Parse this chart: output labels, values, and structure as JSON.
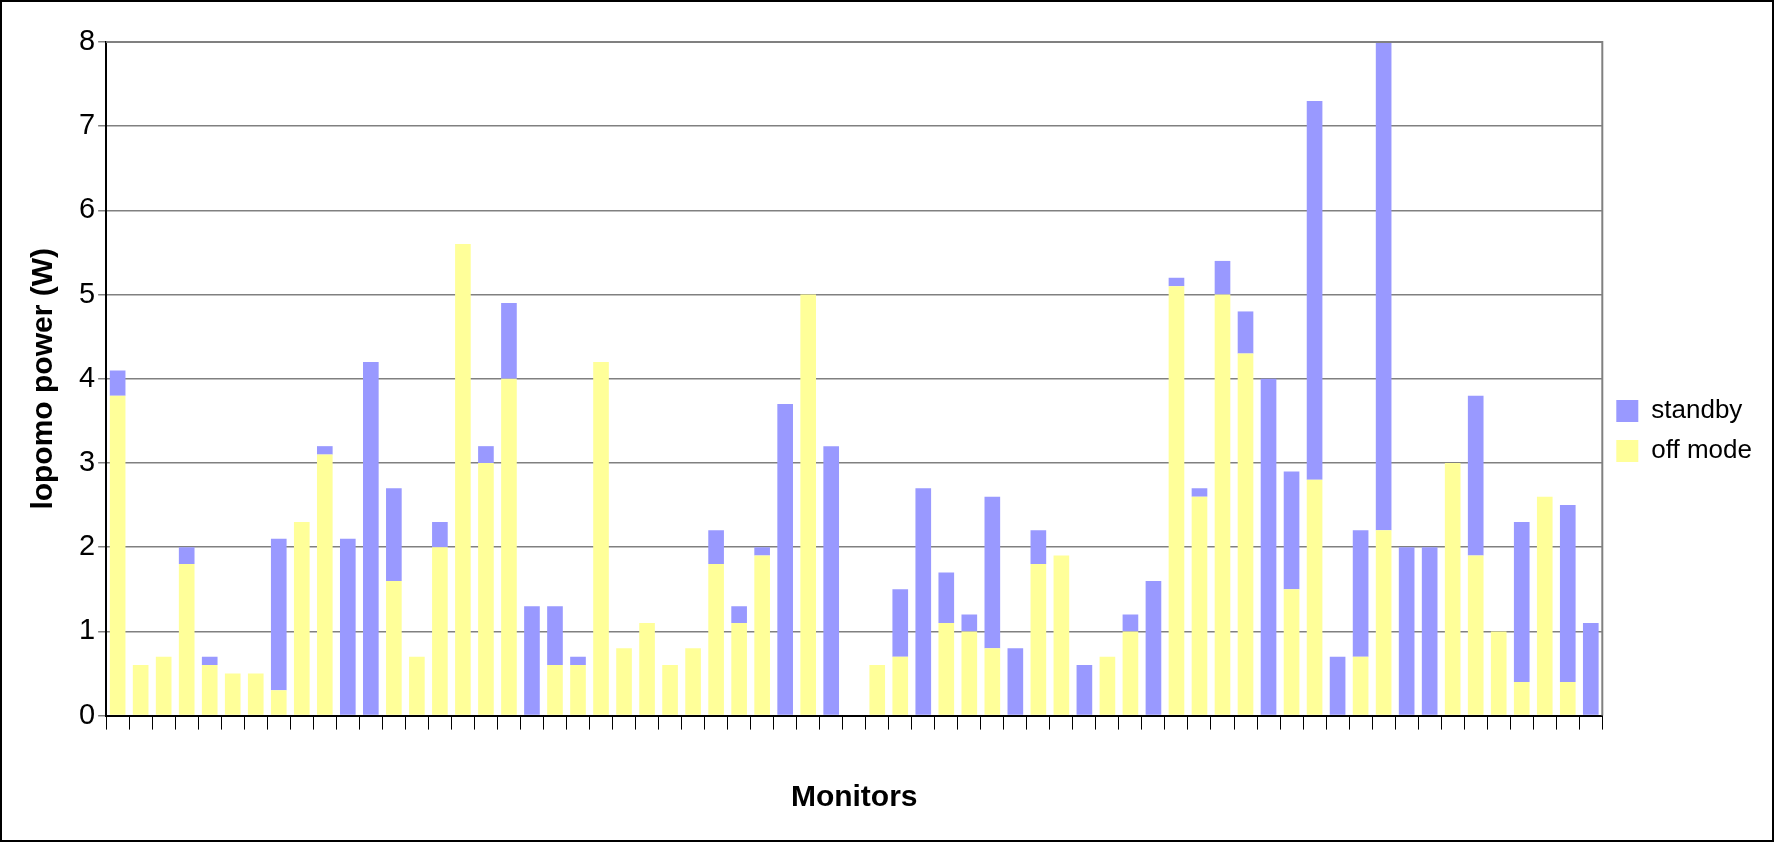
{
  "chart_data": {
    "type": "bar",
    "stacked": true,
    "xlabel": "Monitors",
    "ylabel": "lopomo power (W)",
    "categories": [
      null,
      null,
      null,
      null,
      null,
      null,
      null,
      null,
      null,
      null,
      null,
      null,
      null,
      null,
      null,
      null,
      null,
      null,
      null,
      null,
      null,
      null,
      null,
      null,
      null,
      null,
      null,
      null,
      null,
      null,
      null,
      null,
      null,
      null,
      null,
      null,
      null,
      null,
      null,
      null,
      null,
      null,
      null,
      null,
      null,
      null,
      null,
      null,
      null,
      null,
      null,
      null,
      null,
      null,
      null,
      null,
      null,
      null,
      null,
      null,
      null,
      null,
      null,
      null,
      null
    ],
    "series": [
      {
        "name": "off mode",
        "color": "#ffff99",
        "values": [
          3.8,
          0.6,
          0.7,
          1.8,
          0.6,
          0.5,
          0.5,
          0.3,
          2.3,
          3.1,
          null,
          null,
          1.6,
          0.7,
          2.0,
          5.6,
          3.0,
          4.0,
          null,
          0.6,
          0.6,
          4.2,
          0.8,
          1.1,
          0.6,
          0.8,
          1.8,
          1.1,
          1.9,
          null,
          5.0,
          null,
          null,
          0.6,
          0.7,
          null,
          1.1,
          1.0,
          0.8,
          null,
          1.8,
          1.9,
          null,
          0.7,
          1.0,
          null,
          5.1,
          2.6,
          5.0,
          4.3,
          null,
          1.5,
          2.8,
          null,
          0.7,
          2.2,
          null,
          null,
          3.0,
          1.9,
          1.0,
          0.4,
          2.6,
          0.4,
          null
        ]
      },
      {
        "name": "standby",
        "color": "#9999ff",
        "values": [
          0.3,
          null,
          null,
          0.2,
          0.1,
          null,
          null,
          1.8,
          null,
          0.1,
          2.1,
          4.2,
          1.1,
          null,
          0.3,
          null,
          0.2,
          0.9,
          1.3,
          0.7,
          0.1,
          null,
          null,
          null,
          null,
          null,
          0.4,
          0.2,
          0.1,
          3.7,
          null,
          3.2,
          null,
          null,
          0.8,
          2.7,
          0.6,
          0.2,
          1.8,
          0.8,
          0.4,
          null,
          0.6,
          null,
          0.2,
          1.6,
          0.1,
          0.1,
          0.4,
          0.5,
          4.0,
          1.4,
          4.5,
          0.7,
          1.5,
          5.8,
          2.0,
          2.0,
          null,
          1.9,
          null,
          1.9,
          null,
          2.1,
          1.1
        ]
      }
    ],
    "ylim": [
      0,
      8
    ],
    "yticks": [
      0,
      1,
      2,
      3,
      4,
      5,
      6,
      7,
      8
    ],
    "grid": "y",
    "legend": "right"
  }
}
